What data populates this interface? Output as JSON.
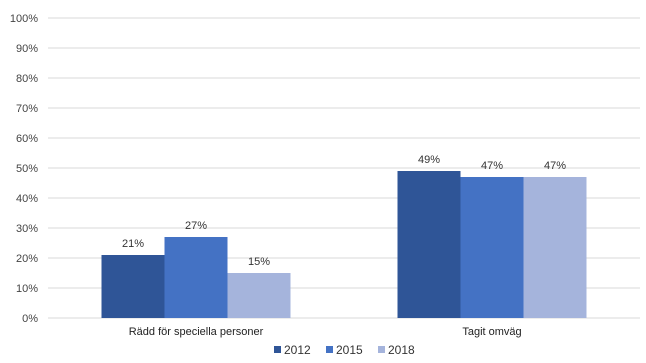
{
  "chart_data": {
    "type": "bar",
    "title": "",
    "xlabel": "",
    "ylabel": "",
    "ylim": [
      0,
      100
    ],
    "y_tick_step": 10,
    "y_tick_suffix": "%",
    "grid": true,
    "legend_position": "bottom",
    "categories": [
      "Rädd för speciella personer",
      "Tagit omväg"
    ],
    "series": [
      {
        "name": "2012",
        "color": "#2f5597",
        "values": [
          21,
          49
        ],
        "labels": [
          "21%",
          "49%"
        ]
      },
      {
        "name": "2015",
        "color": "#4472c4",
        "values": [
          27,
          47
        ],
        "labels": [
          "27%",
          "47%"
        ]
      },
      {
        "name": "2018",
        "color": "#a5b4dc",
        "values": [
          15,
          47
        ],
        "labels": [
          "15%",
          "47%"
        ]
      }
    ]
  }
}
